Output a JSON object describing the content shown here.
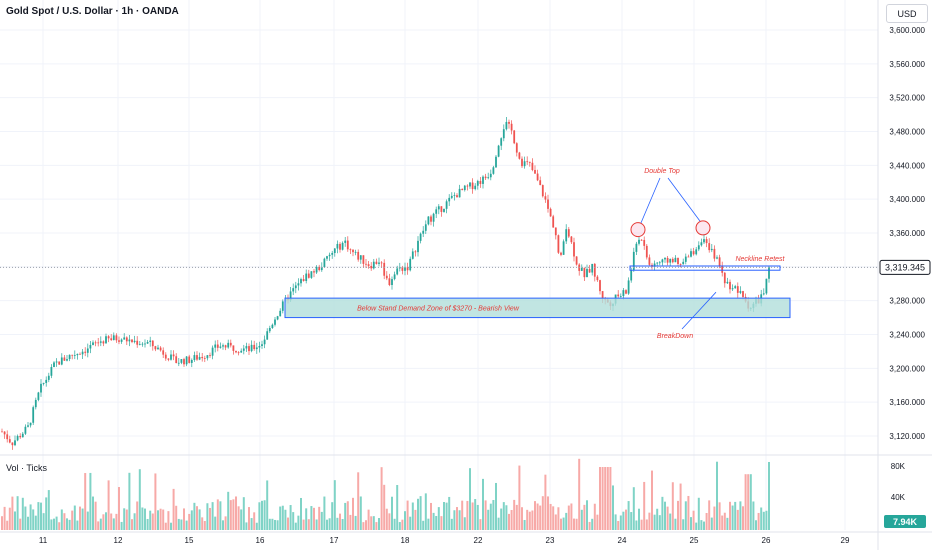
{
  "header": {
    "title": "Gold Spot / U.S. Dollar · 1h · OANDA"
  },
  "price_axis": {
    "currency": "USD",
    "current_price": "3,319.345"
  },
  "volume_pane": {
    "label": "Vol · Ticks",
    "ticks": [
      "80K",
      "40K"
    ],
    "current": "7.94K"
  },
  "colors": {
    "up": "#26a69a",
    "down": "#ef5350",
    "vol_up": "#7fd3c6",
    "vol_down": "#f7a9a7",
    "annotation": "#e53935",
    "zone_fill": "#b2dfdb",
    "zone_stroke": "#2962ff",
    "arrow": "#2962ff"
  },
  "chart_data": {
    "type": "candlestick",
    "title": "Gold Spot / U.S. Dollar · 1h · OANDA",
    "x_tick_labels": [
      "11",
      "12",
      "15",
      "16",
      "17",
      "18",
      "22",
      "23",
      "24",
      "25",
      "26",
      "29"
    ],
    "y_tick_labels": [
      "3,600.000",
      "3,560.000",
      "3,520.000",
      "3,480.000",
      "3,440.000",
      "3,400.000",
      "3,360.000",
      "3,320.000",
      "3,280.000",
      "3,240.000",
      "3,200.000",
      "3,160.000",
      "3,120.000"
    ],
    "ylim": [
      3110,
      3610
    ],
    "price_path": [
      [
        0,
        3128
      ],
      [
        12,
        3112
      ],
      [
        28,
        3130
      ],
      [
        40,
        3175
      ],
      [
        55,
        3205
      ],
      [
        70,
        3215
      ],
      [
        85,
        3222
      ],
      [
        100,
        3232
      ],
      [
        118,
        3236
      ],
      [
        132,
        3232
      ],
      [
        148,
        3230
      ],
      [
        160,
        3222
      ],
      [
        175,
        3208
      ],
      [
        190,
        3210
      ],
      [
        205,
        3216
      ],
      [
        220,
        3227
      ],
      [
        235,
        3224
      ],
      [
        250,
        3222
      ],
      [
        262,
        3230
      ],
      [
        275,
        3260
      ],
      [
        290,
        3288
      ],
      [
        305,
        3308
      ],
      [
        320,
        3320
      ],
      [
        335,
        3340
      ],
      [
        345,
        3350
      ],
      [
        350,
        3340
      ],
      [
        360,
        3330
      ],
      [
        370,
        3322
      ],
      [
        380,
        3328
      ],
      [
        388,
        3300
      ],
      [
        398,
        3318
      ],
      [
        408,
        3320
      ],
      [
        418,
        3350
      ],
      [
        428,
        3375
      ],
      [
        440,
        3388
      ],
      [
        455,
        3405
      ],
      [
        470,
        3415
      ],
      [
        485,
        3425
      ],
      [
        492,
        3435
      ],
      [
        498,
        3465
      ],
      [
        505,
        3490
      ],
      [
        512,
        3480
      ],
      [
        520,
        3445
      ],
      [
        530,
        3440
      ],
      [
        538,
        3420
      ],
      [
        545,
        3400
      ],
      [
        550,
        3380
      ],
      [
        555,
        3365
      ],
      [
        560,
        3322
      ],
      [
        566,
        3370
      ],
      [
        572,
        3345
      ],
      [
        578,
        3320
      ],
      [
        585,
        3310
      ],
      [
        592,
        3320
      ],
      [
        598,
        3300
      ],
      [
        604,
        3280
      ],
      [
        610,
        3278
      ],
      [
        618,
        3285
      ],
      [
        626,
        3290
      ],
      [
        632,
        3322
      ],
      [
        638,
        3358
      ],
      [
        643,
        3345
      ],
      [
        650,
        3320
      ],
      [
        656,
        3325
      ],
      [
        664,
        3325
      ],
      [
        672,
        3330
      ],
      [
        680,
        3320
      ],
      [
        688,
        3332
      ],
      [
        695,
        3340
      ],
      [
        702,
        3355
      ],
      [
        708,
        3340
      ],
      [
        714,
        3335
      ],
      [
        720,
        3320
      ],
      [
        726,
        3300
      ],
      [
        734,
        3296
      ],
      [
        742,
        3285
      ],
      [
        750,
        3272
      ],
      [
        758,
        3280
      ],
      [
        764,
        3290
      ],
      [
        770,
        3320
      ]
    ],
    "volume": {
      "ylim": [
        0,
        80000
      ]
    },
    "annotations": [
      "Double Top",
      "Neckline Retest",
      "Below Stand Demand Zone of $3270 - Bearish View",
      "BreakDown"
    ]
  }
}
